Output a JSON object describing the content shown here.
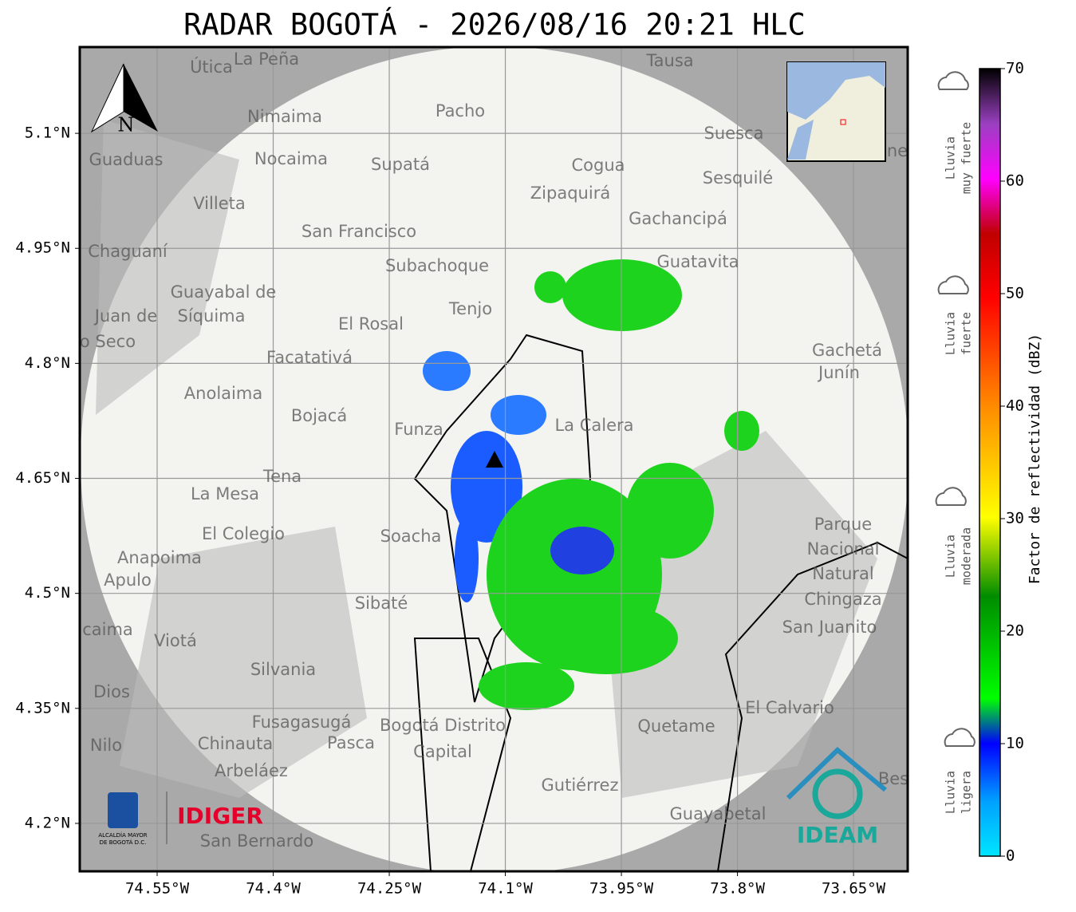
{
  "title": "RADAR BOGOTÁ - 2026/08/16 20:21 HLC",
  "map": {
    "lonlim": [
      -74.65,
      -73.58
    ],
    "latlim": [
      4.1375,
      5.2125
    ],
    "lon_ticks": [
      {
        "value": -74.55,
        "label": "74.55°W"
      },
      {
        "value": -74.4,
        "label": "74.4°W"
      },
      {
        "value": -74.25,
        "label": "74.25°W"
      },
      {
        "value": -74.1,
        "label": "74.1°W"
      },
      {
        "value": -73.95,
        "label": "73.95°W"
      },
      {
        "value": -73.8,
        "label": "73.8°W"
      },
      {
        "value": -73.65,
        "label": "73.65°W"
      }
    ],
    "lat_ticks": [
      {
        "value": 5.1,
        "label": "5.1°N"
      },
      {
        "value": 4.95,
        "label": "4.95°N"
      },
      {
        "value": 4.8,
        "label": "4.8°N"
      },
      {
        "value": 4.65,
        "label": "4.65°N"
      },
      {
        "value": 4.5,
        "label": "4.5°N"
      },
      {
        "value": 4.35,
        "label": "4.35°N"
      },
      {
        "value": 4.2,
        "label": "4.2°N"
      }
    ],
    "north_label": "N",
    "place_names": [
      "La Peña",
      "Útica",
      "Tausa",
      "Pacho",
      "Nimaima",
      "Suesca",
      "Guaduas",
      "Nocaima",
      "Supatá",
      "Cogua",
      "Sesquilé",
      "Zipaquirá",
      "Villeta",
      "Gachancipá",
      "San Francisco",
      "Chaguaní",
      "Guatavita",
      "Subachoque",
      "Guayabal de",
      "Síquima",
      "Juan de",
      "o Seco",
      "Tenjo",
      "El Rosal",
      "Facatativá",
      "Gachetá",
      "Junín",
      "Anolaima",
      "Bojacá",
      "Funza",
      "La Calera",
      "Tena",
      "La Mesa",
      "Parque",
      "Nacional",
      "Natural",
      "Chingaza",
      "El Colegio",
      "Soacha",
      "Anapoima",
      "Apulo",
      "Sibaté",
      "San Juanito",
      "caima",
      "Viotá",
      "Silvania",
      "Dios",
      "El Calvario",
      "Fusagasugá",
      "Bogotá Distrito",
      "Capital",
      "Quetame",
      "Nilo",
      "Chinauta",
      "Pasca",
      "Arbeláez",
      "Gutiérrez",
      "Guayabetal",
      "San Bernardo",
      "Bes",
      "ne"
    ]
  },
  "colorbar": {
    "label": "Factor de reflectividad (dBZ)",
    "lim": [
      0,
      70
    ],
    "ticks": [
      0,
      10,
      20,
      30,
      40,
      50,
      60,
      70
    ],
    "categories": [
      [
        "Lluvia",
        "muy fuerte"
      ],
      [
        "Lluvia",
        "fuerte"
      ],
      [
        "Lluvia",
        "moderada"
      ],
      [
        "Lluvia",
        "ligera"
      ]
    ]
  },
  "logos": {
    "alcaldia": [
      "ALCALDÍA MAYOR",
      "DE BOGOTÁ D.C."
    ],
    "idiger": "IDIGER",
    "ideam": "IDEAM"
  }
}
